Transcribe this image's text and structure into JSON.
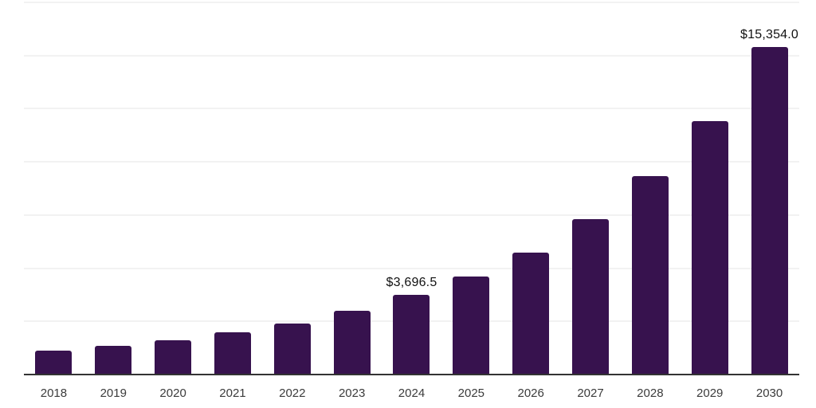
{
  "chart_data": {
    "type": "bar",
    "title": "",
    "xlabel": "",
    "ylabel": "",
    "categories": [
      "2018",
      "2019",
      "2020",
      "2021",
      "2022",
      "2023",
      "2024",
      "2025",
      "2026",
      "2027",
      "2028",
      "2029",
      "2030"
    ],
    "values": [
      1090,
      1310,
      1575,
      1950,
      2360,
      2960,
      3696.5,
      4570,
      5695,
      7270,
      9290,
      11880,
      15354
    ],
    "value_labels": [
      "",
      "",
      "",
      "",
      "",
      "",
      "$3,696.5",
      "",
      "",
      "",
      "",
      "",
      "$15,354.0"
    ],
    "ylim": [
      0,
      17500
    ],
    "gridlines": {
      "visible": true,
      "interval": 2500,
      "color": "#f2f2f2"
    },
    "legend": "none",
    "colors": {
      "bar": "#37124E",
      "axis": "#333333",
      "tick_label": "#3b3b3b",
      "value_label": "#111111",
      "background": "#ffffff"
    }
  }
}
